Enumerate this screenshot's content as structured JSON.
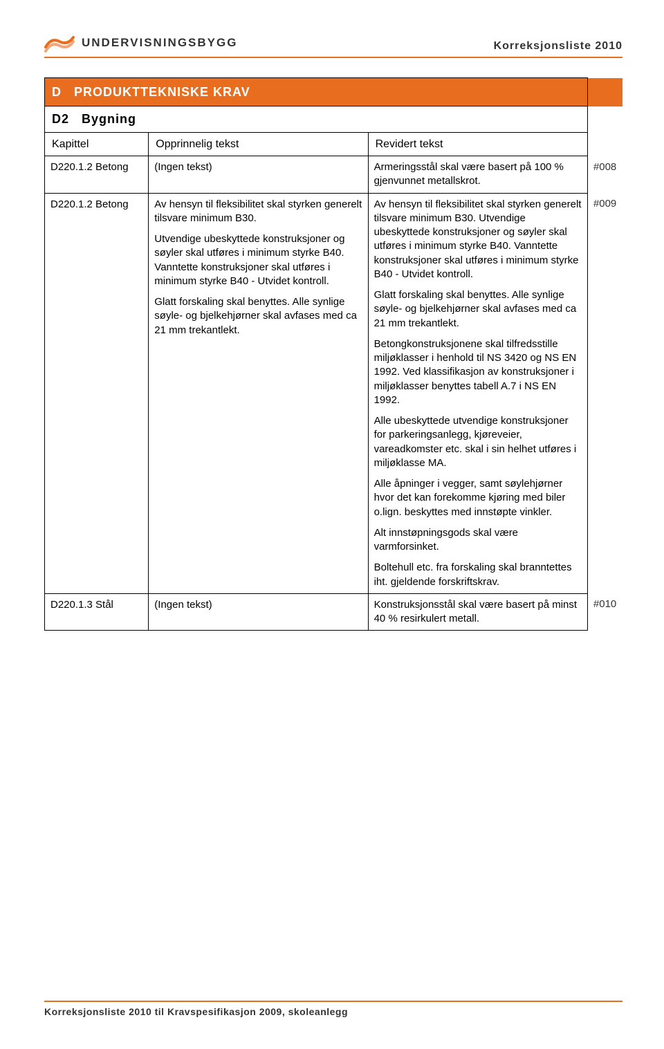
{
  "colors": {
    "accent": "#e86d1f",
    "text": "#000000",
    "header_text": "#333333",
    "background": "#ffffff",
    "border": "#000000"
  },
  "fonts": {
    "body_size_pt": 15,
    "header_size_pt": 18,
    "ref_size_pt": 11
  },
  "header": {
    "logo_text": "UNDERVISNINGSBYGG",
    "doc_title": "Korreksjonsliste 2010"
  },
  "footer": {
    "text": "Korreksjonsliste 2010 til Kravspesifikasjon 2009, skoleanlegg"
  },
  "section": {
    "code": "D",
    "title": "PRODUKTTEKNISKE KRAV",
    "sub_code": "D2",
    "sub_title": "Bygning"
  },
  "columns": {
    "kapittel": "Kapittel",
    "opprinnelig": "Opprinnelig tekst",
    "revidert": "Revidert tekst"
  },
  "rows": [
    {
      "kapittel": "D220.1.2 Betong",
      "opprinnelig": [
        "(Ingen tekst)"
      ],
      "revidert": [
        "Armeringsstål skal være basert på 100 % gjenvunnet metallskrot."
      ],
      "ref": "#008"
    },
    {
      "kapittel": "D220.1.2 Betong",
      "opprinnelig": [
        "Av hensyn til fleksibilitet skal styrken generelt tilsvare minimum B30.",
        "Utvendige ubeskyttede konstruksjoner og søyler skal utføres i minimum styrke B40. Vanntette konstruksjoner skal utføres i minimum styrke B40 - Utvidet kontroll.",
        "Glatt forskaling skal benyttes. Alle synlige søyle- og bjelkehjørner skal avfases med ca 21 mm trekantlekt."
      ],
      "revidert": [
        "Av hensyn til fleksibilitet skal styrken generelt tilsvare minimum B30. Utvendige ubeskyttede konstruksjoner og søyler skal utføres i minimum styrke B40. Vanntette konstruksjoner skal utføres i minimum styrke B40 - Utvidet kontroll.",
        "Glatt forskaling skal benyttes. Alle synlige søyle- og bjelkehjørner skal avfases med ca 21 mm trekantlekt.",
        "Betongkonstruksjonene skal tilfredsstille miljøklasser i henhold til NS 3420 og NS EN 1992. Ved klassifikasjon av konstruksjoner i miljøklasser benyttes tabell A.7 i NS EN 1992.",
        "Alle ubeskyttede utvendige konstruksjoner for parkeringsanlegg, kjøreveier, vareadkomster etc. skal i sin helhet utføres i miljøklasse MA.",
        "Alle åpninger i vegger, samt søylehjørner hvor det kan forekomme kjøring med biler o.lign. beskyttes med innstøpte vinkler.",
        "Alt innstøpningsgods skal være varmforsinket.",
        "Boltehull etc. fra forskaling skal branntettes iht. gjeldende forskriftskrav."
      ],
      "ref": "#009"
    },
    {
      "kapittel": "D220.1.3 Stål",
      "opprinnelig": [
        "(Ingen tekst)"
      ],
      "revidert": [
        "Konstruksjonsstål skal være basert på minst 40 % resirkulert metall."
      ],
      "ref": "#010"
    }
  ]
}
